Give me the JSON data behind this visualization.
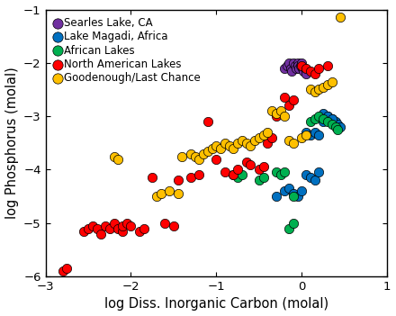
{
  "title": "",
  "xlabel": "log Diss. Inorganic Carbon (molal)",
  "ylabel": "log Phosphorus (molal)",
  "xlim": [
    -3,
    1
  ],
  "ylim": [
    -6,
    -1
  ],
  "xticks": [
    -3,
    -2,
    -1,
    0,
    1
  ],
  "yticks": [
    -6,
    -5,
    -4,
    -3,
    -2,
    -1
  ],
  "groups": {
    "Searles Lake, CA": {
      "color": "#7030A0",
      "x": [
        -0.2,
        -0.17,
        -0.15,
        -0.13,
        -0.12,
        -0.1,
        -0.08,
        -0.07,
        -0.05,
        -0.04,
        -0.03,
        -0.01,
        0.0,
        0.01,
        0.02,
        0.04,
        0.05
      ],
      "y": [
        -2.1,
        -2.05,
        -2.0,
        -2.1,
        -2.15,
        -2.0,
        -2.05,
        -2.1,
        -2.0,
        -2.05,
        -2.1,
        -2.05,
        -2.0,
        -2.1,
        -2.15,
        -2.1,
        -2.2
      ]
    },
    "Lake Magadi, Africa": {
      "color": "#0070C0",
      "x": [
        -0.3,
        -0.2,
        -0.15,
        -0.1,
        -0.05,
        0.0,
        0.05,
        0.1,
        0.15,
        0.2,
        0.25,
        0.3,
        0.35,
        0.4,
        0.42,
        0.45,
        0.05,
        0.1,
        0.15,
        0.2,
        0.25,
        0.3,
        0.35
      ],
      "y": [
        -4.5,
        -4.4,
        -4.35,
        -4.45,
        -4.5,
        -4.4,
        -4.1,
        -4.15,
        -4.2,
        -4.05,
        -3.1,
        -3.0,
        -3.05,
        -3.1,
        -3.15,
        -3.2,
        -3.3,
        -3.35,
        -3.3,
        -3.35,
        -2.95,
        -3.0,
        -3.05
      ]
    },
    "African Lakes": {
      "color": "#00B050",
      "x": [
        -0.8,
        -0.75,
        -0.7,
        -0.5,
        -0.45,
        -0.3,
        -0.25,
        -0.2,
        -0.1,
        0.1,
        0.15,
        0.2,
        0.25,
        0.3,
        0.35,
        0.4,
        0.42,
        -0.15,
        -0.1
      ],
      "y": [
        -4.1,
        -4.15,
        -4.1,
        -4.2,
        -4.15,
        -4.05,
        -4.1,
        -4.05,
        -4.5,
        -3.1,
        -3.05,
        -3.0,
        -3.05,
        -3.1,
        -3.15,
        -3.2,
        -3.25,
        -5.1,
        -5.0
      ]
    },
    "North American Lakes": {
      "color": "#FF0000",
      "x": [
        -2.8,
        -2.75,
        -2.55,
        -2.5,
        -2.45,
        -2.4,
        -2.35,
        -2.3,
        -2.25,
        -2.2,
        -2.15,
        -2.1,
        -2.1,
        -2.05,
        -2.0,
        -1.9,
        -1.85,
        -1.75,
        -1.6,
        -1.5,
        -1.45,
        -1.3,
        -1.2,
        -1.1,
        -1.0,
        -0.9,
        -0.8,
        -0.75,
        -0.65,
        -0.6,
        -0.5,
        -0.45,
        -0.4,
        -0.35,
        -0.3,
        -0.2,
        -0.15,
        -0.1,
        0.0,
        0.05,
        0.1,
        0.15,
        0.2,
        0.3
      ],
      "y": [
        -5.9,
        -5.85,
        -5.15,
        -5.1,
        -5.05,
        -5.1,
        -5.2,
        -5.05,
        -5.1,
        -5.0,
        -5.1,
        -5.15,
        -5.05,
        -5.0,
        -5.05,
        -5.15,
        -5.1,
        -4.15,
        -5.0,
        -5.05,
        -4.2,
        -4.15,
        -4.1,
        -3.1,
        -3.8,
        -4.05,
        -4.1,
        -4.0,
        -3.85,
        -3.9,
        -4.0,
        -3.95,
        -3.5,
        -3.4,
        -3.0,
        -2.65,
        -2.8,
        -2.7,
        -2.05,
        -2.1,
        -2.15,
        -2.2,
        -2.1,
        -2.05
      ]
    },
    "Goodenough/Last Chance": {
      "color": "#FFC000",
      "x": [
        -2.2,
        -2.15,
        -1.7,
        -1.65,
        -1.55,
        -1.45,
        -1.4,
        -1.3,
        -1.25,
        -1.2,
        -1.15,
        -1.1,
        -1.05,
        -1.0,
        -0.95,
        -0.9,
        -0.85,
        -0.8,
        -0.75,
        -0.7,
        -0.65,
        -0.6,
        -0.55,
        -0.5,
        -0.45,
        -0.4,
        -0.35,
        -0.3,
        -0.25,
        -0.2,
        -0.15,
        -0.1,
        0.0,
        0.05,
        0.1,
        0.15,
        0.2,
        0.25,
        0.3,
        0.35,
        0.45
      ],
      "y": [
        -3.75,
        -3.8,
        -4.5,
        -4.45,
        -4.4,
        -4.45,
        -3.75,
        -3.7,
        -3.75,
        -3.8,
        -3.7,
        -3.65,
        -3.6,
        -3.55,
        -3.6,
        -3.5,
        -3.55,
        -3.6,
        -3.5,
        -3.45,
        -3.5,
        -3.55,
        -3.45,
        -3.4,
        -3.35,
        -3.3,
        -2.9,
        -2.95,
        -2.9,
        -3.0,
        -3.45,
        -3.5,
        -3.4,
        -3.35,
        -2.5,
        -2.55,
        -2.5,
        -2.45,
        -2.4,
        -2.35,
        -1.15
      ]
    }
  },
  "marker_size": 55,
  "legend_fontsize": 8.5,
  "tick_fontsize": 9.5,
  "label_fontsize": 10.5
}
